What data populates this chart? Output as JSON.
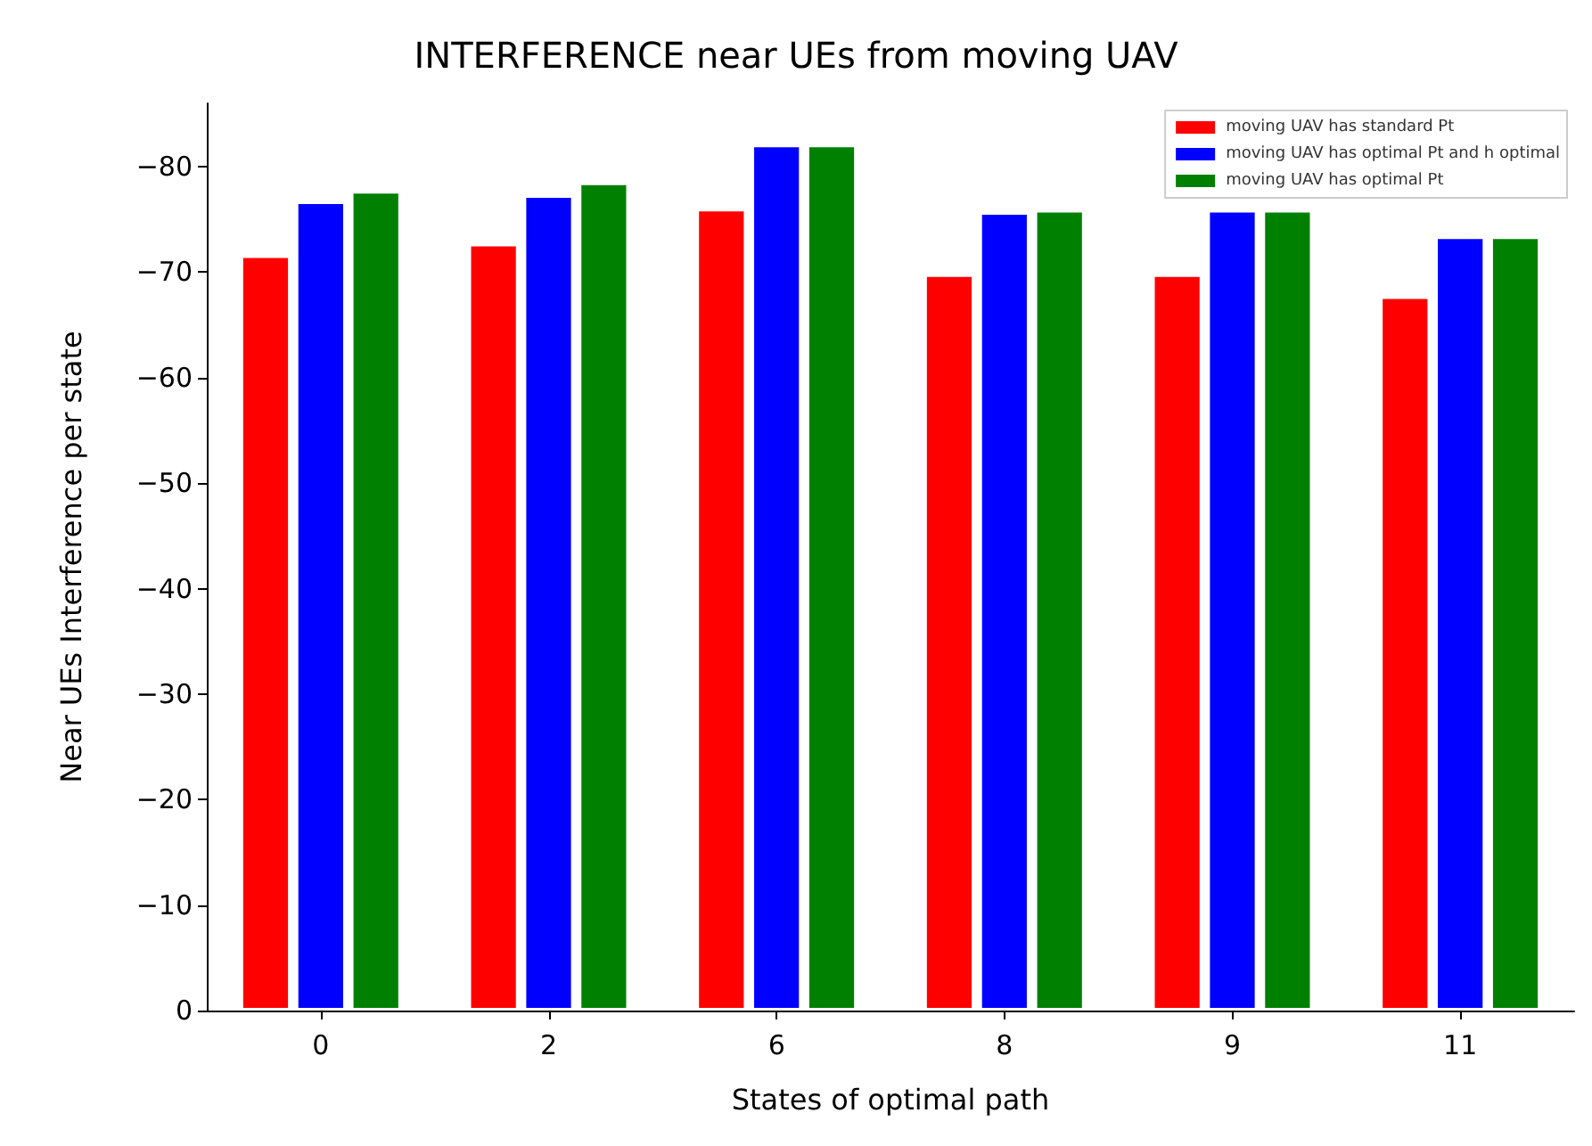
{
  "chart_data": {
    "type": "bar",
    "title": "INTERFERENCE near UEs from moving UAV",
    "xlabel": "States of optimal path",
    "ylabel": "Near UEs Interference per state",
    "categories": [
      "0",
      "2",
      "6",
      "8",
      "9",
      "11"
    ],
    "series": [
      {
        "name": "moving UAV has standard Pt",
        "color": "#ff0000",
        "values": [
          -71.6,
          -72.7,
          -76.0,
          -69.8,
          -69.8,
          -67.7
        ]
      },
      {
        "name": "moving UAV has optimal Pt and h optimal",
        "color": "#0000ff",
        "values": [
          -76.7,
          -77.3,
          -82.1,
          -75.7,
          -75.9,
          -73.4
        ]
      },
      {
        "name": "moving UAV has optimal Pt",
        "color": "#008000",
        "values": [
          -77.7,
          -78.5,
          -82.1,
          -75.9,
          -75.9,
          -73.4
        ]
      }
    ],
    "ylim": [
      0,
      -86
    ],
    "yticks": [
      {
        "value": 0,
        "label": "0"
      },
      {
        "value": -10,
        "label": "−10"
      },
      {
        "value": -20,
        "label": "−20"
      },
      {
        "value": -30,
        "label": "−30"
      },
      {
        "value": -40,
        "label": "−40"
      },
      {
        "value": -50,
        "label": "−50"
      },
      {
        "value": -60,
        "label": "−60"
      },
      {
        "value": -70,
        "label": "−70"
      },
      {
        "value": -80,
        "label": "−80"
      }
    ],
    "grid": false,
    "legend": "top right"
  }
}
